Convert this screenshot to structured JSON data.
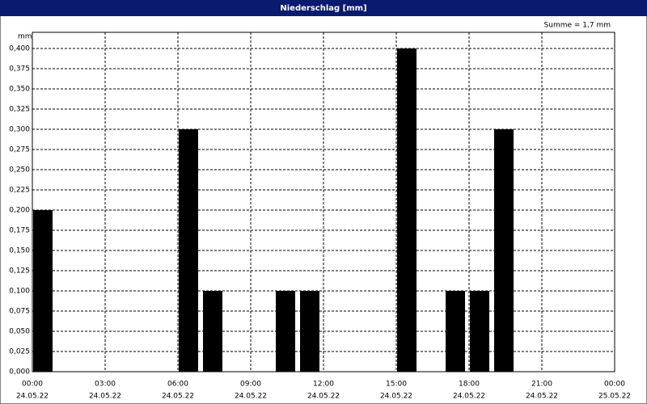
{
  "chart_data": {
    "type": "bar",
    "title": "Niederschlag [mm]",
    "y_unit": "mm",
    "annotation": "Summe = 1,7 mm",
    "x": [
      "24.05.22 00:00",
      "24.05.22 06:00",
      "24.05.22 07:00",
      "24.05.22 10:00",
      "24.05.22 11:00",
      "24.05.22 15:00",
      "24.05.22 17:00",
      "24.05.22 18:00",
      "24.05.22 19:00"
    ],
    "values": [
      0.2,
      0.3,
      0.1,
      0.1,
      0.1,
      0.4,
      0.1,
      0.1,
      0.3
    ],
    "color": "#000000",
    "xlim": [
      "24.05.22 00:00",
      "25.05.22 00:00"
    ],
    "xticks": [
      {
        "value": "24.05.22 00:00",
        "label": [
          "00:00",
          "24.05.22"
        ]
      },
      {
        "value": "24.05.22 03:00",
        "label": [
          "03:00",
          "24.05.22"
        ]
      },
      {
        "value": "24.05.22 06:00",
        "label": [
          "06:00",
          "24.05.22"
        ]
      },
      {
        "value": "24.05.22 09:00",
        "label": [
          "09:00",
          "24.05.22"
        ]
      },
      {
        "value": "24.05.22 12:00",
        "label": [
          "12:00",
          "24.05.22"
        ]
      },
      {
        "value": "24.05.22 15:00",
        "label": [
          "15:00",
          "24.05.22"
        ]
      },
      {
        "value": "24.05.22 18:00",
        "label": [
          "18:00",
          "24.05.22"
        ]
      },
      {
        "value": "24.05.22 21:00",
        "label": [
          "21:00",
          "24.05.22"
        ]
      },
      {
        "value": "25.05.22 00:00",
        "label": [
          "00:00",
          "25.05.22"
        ]
      }
    ],
    "ylim": [
      0,
      0.42
    ],
    "yticks": [
      {
        "value": 0,
        "label": "0,000"
      },
      {
        "value": 0.025,
        "label": "0,025"
      },
      {
        "value": 0.05,
        "label": "0,050"
      },
      {
        "value": 0.075,
        "label": "0,075"
      },
      {
        "value": 0.1,
        "label": "0,100"
      },
      {
        "value": 0.125,
        "label": "0,125"
      },
      {
        "value": 0.15,
        "label": "0,150"
      },
      {
        "value": 0.175,
        "label": "0,175"
      },
      {
        "value": 0.2,
        "label": "0,200"
      },
      {
        "value": 0.225,
        "label": "0,225"
      },
      {
        "value": 0.25,
        "label": "0,250"
      },
      {
        "value": 0.275,
        "label": "0,275"
      },
      {
        "value": 0.3,
        "label": "0,300"
      },
      {
        "value": 0.325,
        "label": "0,325"
      },
      {
        "value": 0.35,
        "label": "0,350"
      },
      {
        "value": 0.375,
        "label": "0,375"
      },
      {
        "value": 0.4,
        "label": "0,400"
      }
    ],
    "grid": true
  }
}
